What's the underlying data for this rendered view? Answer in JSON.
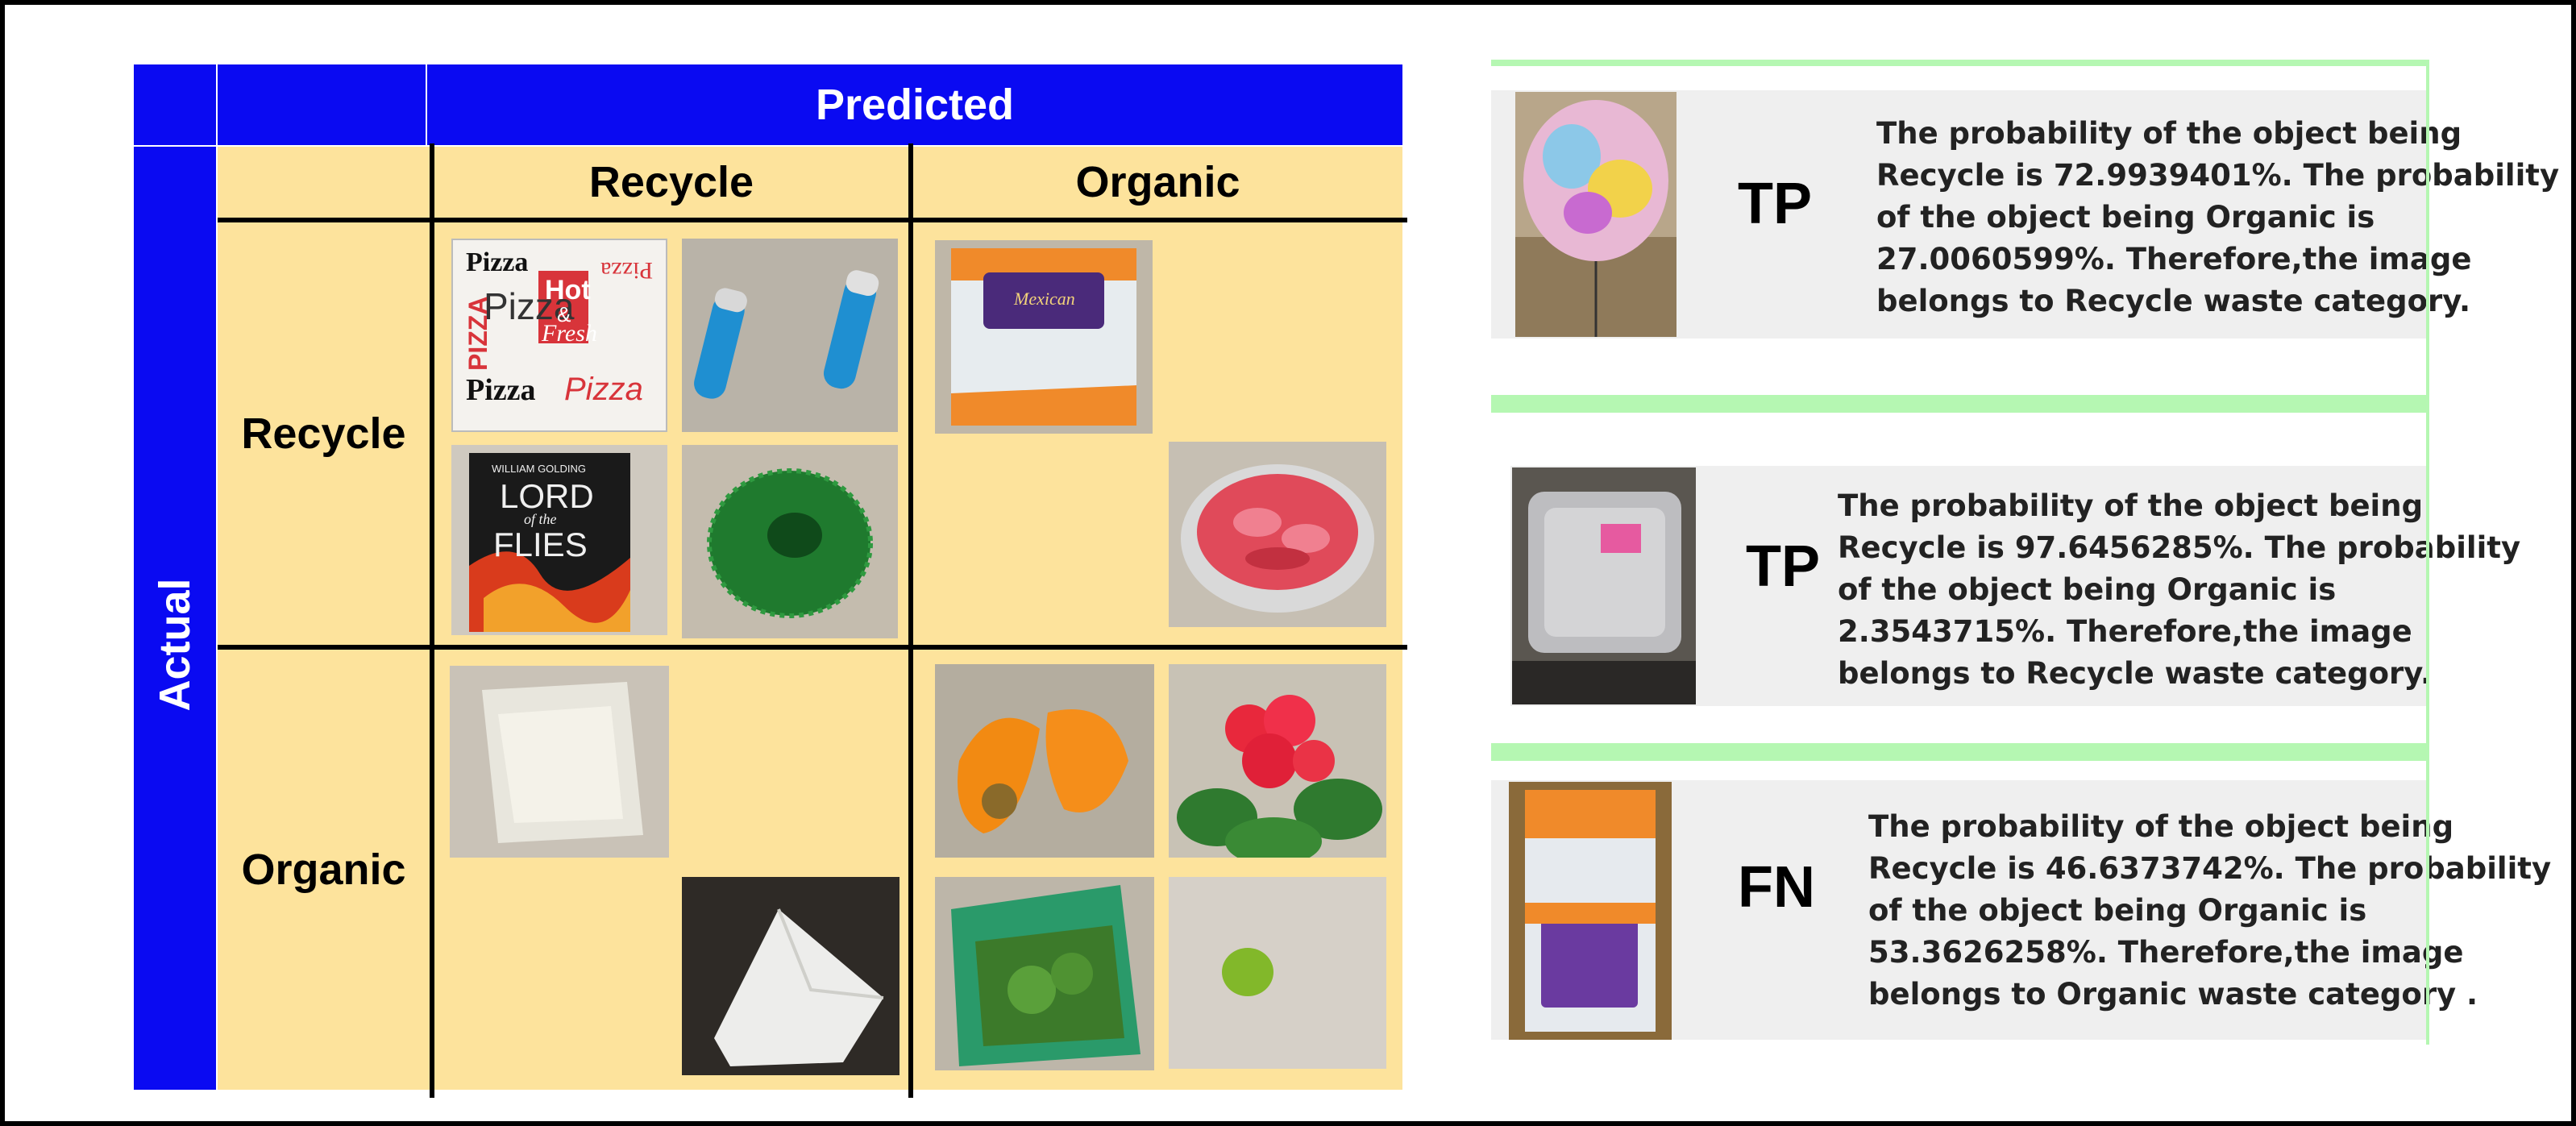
{
  "matrix": {
    "predicted_header": "Predicted",
    "actual_header": "Actual",
    "col_labels": [
      "Recycle",
      "Organic"
    ],
    "row_labels": [
      "Recycle",
      "Organic"
    ],
    "cells": {
      "recycle_recycle": [
        "pizza box",
        "batteries",
        "book",
        "green mesh"
      ],
      "recycle_organic": [
        "food bag",
        "plastic container"
      ],
      "organic_recycle": [
        "plastic bag",
        "tissue paper"
      ],
      "organic_organic": [
        "orange peels",
        "flowers",
        "spinach bag",
        "lime"
      ]
    },
    "pizza_box": {
      "words": [
        "Pizza",
        "Pizza",
        "Pizza",
        "Hot",
        "&",
        "Fresh",
        "PIZZA",
        "Pizza",
        "Pizza"
      ]
    },
    "book": {
      "author": "WILLIAM GOLDING",
      "title_line1": "LORD",
      "title_line2": "of the",
      "title_line3": "FLIES"
    },
    "food_bag_label": "Mexican",
    "colors": {
      "header_blue": "#0a0af2",
      "cell_tan": "#fde39c"
    }
  },
  "results": [
    {
      "verdict": "TP",
      "text": "The probability of the object being\nRecycle is 72.9939401%. The probability\nof the object being Organic is\n27.0060599%. Therefore,the image\nbelongs to Recycle waste category.",
      "image": "balloon"
    },
    {
      "verdict": "TP",
      "text": "The probability of the object being\nRecycle is 97.6456285%. The probability\nof the object being Organic is\n2.3543715%. Therefore,the image\nbelongs to Recycle waste category.",
      "image": "plastic container"
    },
    {
      "verdict": "FN",
      "text": "The probability of the object being\nRecycle is 46.6373742%. The probability\nof the object being Organic is\n53.3626258%. Therefore,the image\nbelongs to Organic waste category .",
      "image": "food bag"
    }
  ]
}
